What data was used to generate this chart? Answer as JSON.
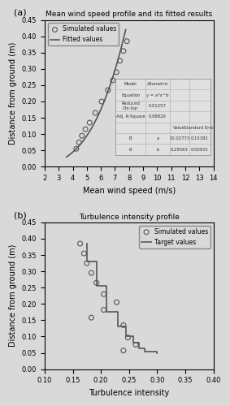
{
  "panel_a": {
    "title": "Mean wind speed profile and its fitted results",
    "xlabel": "Mean wind speed (m/s)",
    "ylabel": "Distance from ground (m)",
    "xlim": [
      2,
      14
    ],
    "ylim": [
      0.0,
      0.45
    ],
    "xticks": [
      2,
      3,
      4,
      5,
      6,
      7,
      8,
      9,
      10,
      11,
      12,
      13,
      14
    ],
    "yticks": [
      0.0,
      0.05,
      0.1,
      0.15,
      0.2,
      0.25,
      0.3,
      0.35,
      0.4,
      0.45
    ],
    "sim_x": [
      4.25,
      4.45,
      4.65,
      4.9,
      5.2,
      5.6,
      6.05,
      6.5,
      6.85,
      7.1,
      7.35,
      7.6,
      7.85
    ],
    "sim_y": [
      0.055,
      0.075,
      0.095,
      0.115,
      0.135,
      0.165,
      0.2,
      0.235,
      0.265,
      0.29,
      0.325,
      0.355,
      0.385
    ],
    "fit_a": 10.02773,
    "fit_b": 0.29563,
    "legend_labels": [
      "Simulated values",
      "Fitted values"
    ],
    "table_data": {
      "model": "Allometric",
      "equation": "y = a*x^b",
      "reduced_chi_sqr": "0.01257",
      "adj_r_square": "0.98826",
      "param_a_value": "10.02773",
      "param_a_se": "0.15382",
      "param_b_value": "0.29563",
      "param_b_se": "0.00933"
    }
  },
  "panel_b": {
    "title": "Turbulence intensity profile",
    "xlabel": "Turbulence intensity",
    "ylabel": "Distance from ground (m)",
    "xlim": [
      0.1,
      0.4
    ],
    "ylim": [
      0.0,
      0.45
    ],
    "xticks": [
      0.1,
      0.15,
      0.2,
      0.25,
      0.3,
      0.35,
      0.4
    ],
    "yticks": [
      0.0,
      0.05,
      0.1,
      0.15,
      0.2,
      0.25,
      0.3,
      0.35,
      0.4,
      0.45
    ],
    "sim_x": [
      0.163,
      0.17,
      0.175,
      0.183,
      0.192,
      0.205,
      0.228,
      0.205,
      0.183,
      0.24,
      0.248,
      0.262,
      0.24
    ],
    "sim_y": [
      0.385,
      0.355,
      0.325,
      0.295,
      0.265,
      0.23,
      0.205,
      0.182,
      0.158,
      0.135,
      0.097,
      0.075,
      0.057
    ],
    "target_x": [
      0.175,
      0.175,
      0.193,
      0.193,
      0.21,
      0.21,
      0.23,
      0.23,
      0.245,
      0.245,
      0.258,
      0.258,
      0.268,
      0.268,
      0.278,
      0.278,
      0.3,
      0.3
    ],
    "target_y": [
      0.385,
      0.33,
      0.33,
      0.255,
      0.255,
      0.175,
      0.175,
      0.13,
      0.13,
      0.1,
      0.1,
      0.08,
      0.08,
      0.065,
      0.065,
      0.055,
      0.055,
      0.05
    ],
    "legend_labels": [
      "Simulated values",
      "Target values"
    ]
  },
  "bg_color": "#d9d9d9",
  "marker": "o",
  "marker_facecolor": "none",
  "marker_edgecolor": "#555555",
  "line_color": "#555555"
}
